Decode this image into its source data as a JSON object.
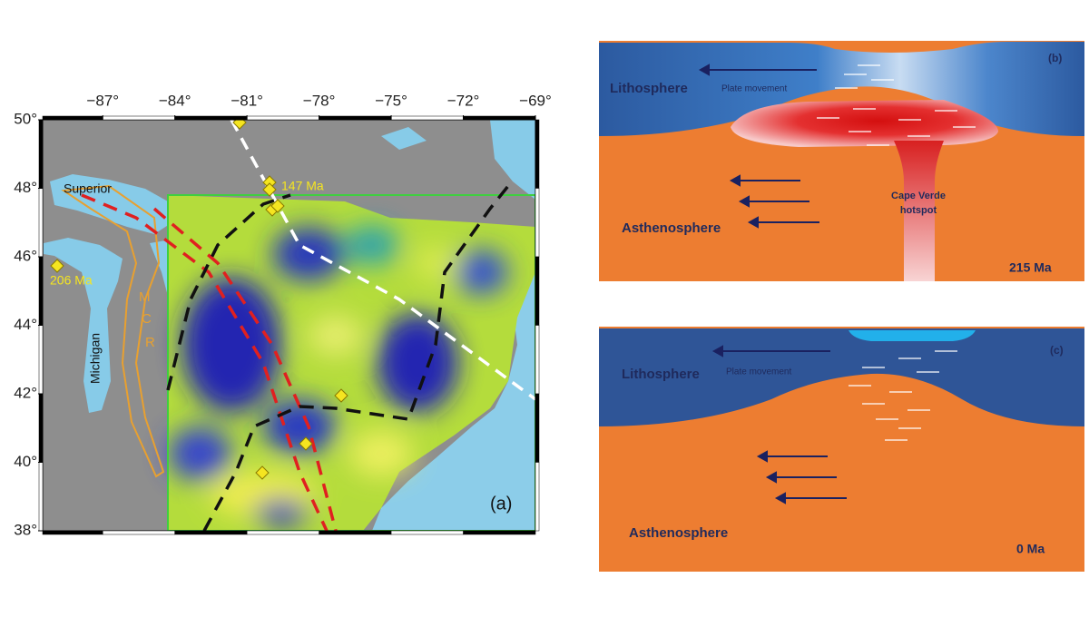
{
  "panel_a": {
    "label": "(a)",
    "lonlim": [
      -89.5,
      -69
    ],
    "latlim": [
      38,
      50
    ],
    "lon_ticks": [
      {
        "value": -87,
        "label": "−87°"
      },
      {
        "value": -84,
        "label": "−84°"
      },
      {
        "value": -81,
        "label": "−81°"
      },
      {
        "value": -78,
        "label": "−78°"
      },
      {
        "value": -75,
        "label": "−75°"
      },
      {
        "value": -72,
        "label": "−72°"
      },
      {
        "value": -69,
        "label": "−69°"
      }
    ],
    "lat_ticks": [
      {
        "value": 50,
        "label": "50°"
      },
      {
        "value": 48,
        "label": "48°"
      },
      {
        "value": 46,
        "label": "46°"
      },
      {
        "value": 44,
        "label": "44°"
      },
      {
        "value": 42,
        "label": "42°"
      },
      {
        "value": 40,
        "label": "40°"
      },
      {
        "value": 38,
        "label": "38°"
      }
    ],
    "labels": {
      "superior": "Superior",
      "michigan": "Michigan",
      "age_206": "206 Ma",
      "age_147": "147 Ma",
      "mcr": [
        "M",
        "C",
        "R"
      ]
    }
  },
  "panel_b": {
    "label": "(b)",
    "lithosphere": "Lithosphere",
    "plate_movement": "Plate movement",
    "asthenosphere": "Asthenosphere",
    "hotspot": [
      "Cape Verde",
      "hotspot"
    ],
    "age": "215 Ma"
  },
  "panel_c": {
    "label": "(c)",
    "lithosphere": "Lithosphere",
    "plate_movement": "Plate movement",
    "asthenosphere": "Asthenosphere",
    "age": "0 Ma"
  }
}
